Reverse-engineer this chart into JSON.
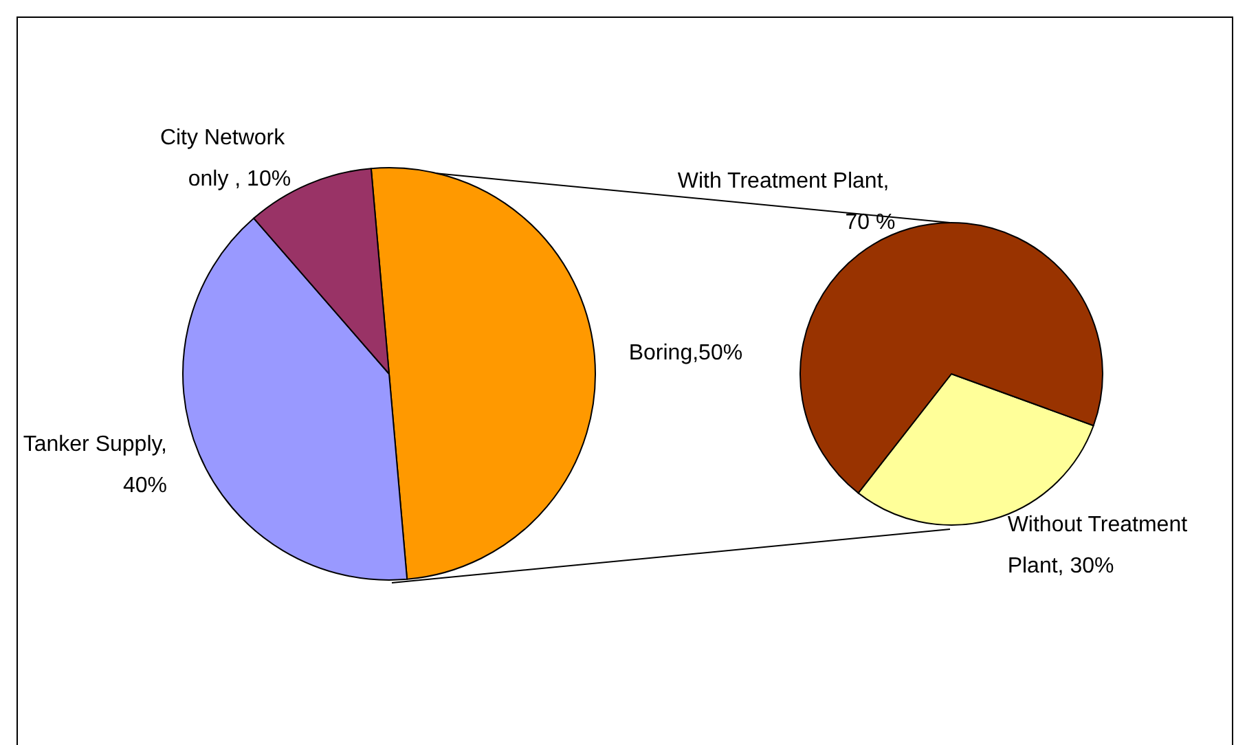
{
  "chart_data": [
    {
      "type": "pie",
      "categories": [
        "Boring,50%",
        "Tanker Supply, 40%",
        "City Network only , 10%"
      ],
      "values": [
        50,
        40,
        10
      ],
      "colors": [
        "#ff9900",
        "#9999ff",
        "#993366"
      ]
    },
    {
      "type": "pie",
      "categories": [
        "Without Treatment Plant, 30%",
        "With Treatment Plant, 70 %"
      ],
      "values": [
        30,
        70
      ],
      "colors": [
        "#ffff99",
        "#993300"
      ]
    }
  ]
}
